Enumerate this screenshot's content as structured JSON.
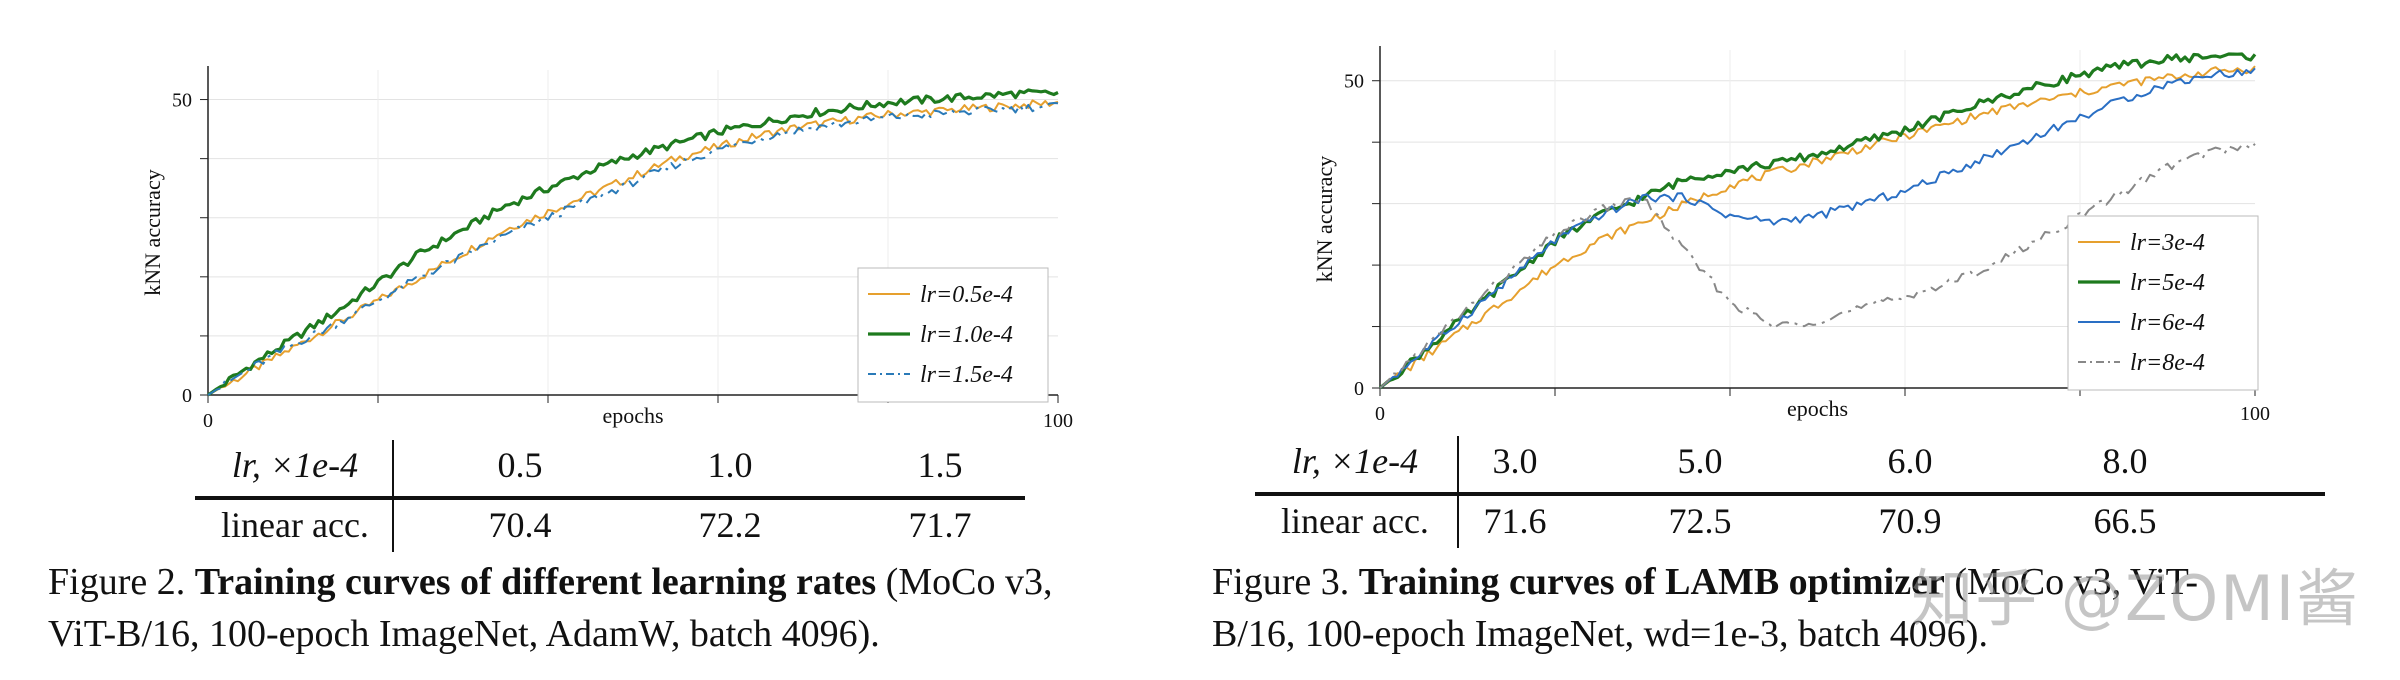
{
  "figures": [
    {
      "id": "fig2",
      "caption_prefix": "Figure 2.",
      "caption_bold": "Training curves of different learning rates",
      "caption_rest_line1": " (MoCo v3,",
      "caption_line2": "ViT-B/16, 100-epoch ImageNet, AdamW, batch 4096).",
      "table": {
        "header_label": "lr, ×1e-4",
        "header_values": [
          "0.5",
          "1.0",
          "1.5"
        ],
        "row_label": "linear acc.",
        "row_values": [
          "70.4",
          "72.2",
          "71.7"
        ]
      }
    },
    {
      "id": "fig3",
      "caption_prefix": "Figure 3.",
      "caption_bold": "Training curves of LAMB optimizer",
      "caption_rest_line1": " (MoCo v3, ViT-",
      "caption_line2": "B/16, 100-epoch ImageNet, wd=1e-3, batch 4096).",
      "table": {
        "header_label": "lr, ×1e-4",
        "header_values": [
          "3.0",
          "5.0",
          "6.0",
          "8.0"
        ],
        "row_label": "linear acc.",
        "row_values": [
          "71.6",
          "72.5",
          "70.9",
          "66.5"
        ]
      }
    }
  ],
  "watermark": "知乎 @ZOMI酱",
  "chart_data": [
    {
      "type": "line",
      "title": "",
      "xlabel": "epochs",
      "ylabel": "kNN accuracy",
      "xlim": [
        0,
        100
      ],
      "ylim": [
        0,
        55
      ],
      "x_ticks": [
        0,
        100
      ],
      "y_ticks": [
        0,
        50
      ],
      "legend_position": "bottom-right",
      "series": [
        {
          "name": "lr=0.5e-4",
          "color": "#e6a02e",
          "style": "solid",
          "x": [
            0,
            5,
            10,
            15,
            20,
            25,
            30,
            35,
            40,
            45,
            50,
            55,
            60,
            65,
            70,
            75,
            80,
            85,
            90,
            95,
            100
          ],
          "y": [
            0,
            4,
            8,
            12,
            16,
            20,
            24,
            28,
            31,
            34,
            37,
            40,
            42,
            44,
            45.5,
            46.5,
            47.5,
            48,
            48.5,
            49,
            49.5
          ]
        },
        {
          "name": "lr=1.0e-4",
          "color": "#1e7a1e",
          "style": "solid",
          "x": [
            0,
            5,
            10,
            15,
            20,
            25,
            30,
            35,
            40,
            45,
            50,
            55,
            60,
            65,
            70,
            75,
            80,
            85,
            90,
            95,
            100
          ],
          "y": [
            0,
            5,
            9.5,
            14,
            19,
            24,
            28,
            32,
            35,
            38,
            40.5,
            42.5,
            44.5,
            46,
            47.5,
            48.5,
            49.5,
            50,
            50.5,
            51,
            51
          ]
        },
        {
          "name": "lr=1.5e-4",
          "color": "#2a7ab8",
          "style": "dashdot",
          "x": [
            0,
            5,
            10,
            15,
            20,
            25,
            30,
            35,
            40,
            45,
            50,
            55,
            60,
            65,
            70,
            75,
            80,
            85,
            90,
            95,
            100
          ],
          "y": [
            0,
            4.5,
            8.5,
            12,
            16,
            20,
            23.5,
            27,
            30,
            33,
            36,
            39,
            41.5,
            43.5,
            45,
            46,
            47,
            47.5,
            48,
            48.5,
            49
          ]
        }
      ]
    },
    {
      "type": "line",
      "title": "",
      "xlabel": "epochs",
      "ylabel": "kNN accuracy",
      "xlim": [
        0,
        100
      ],
      "ylim": [
        0,
        55
      ],
      "x_ticks": [
        0,
        100
      ],
      "y_ticks": [
        0,
        50
      ],
      "legend_position": "right",
      "series": [
        {
          "name": "lr=3e-4",
          "color": "#e6a02e",
          "style": "solid",
          "x": [
            0,
            5,
            10,
            15,
            20,
            25,
            30,
            35,
            40,
            45,
            50,
            55,
            60,
            65,
            70,
            75,
            80,
            85,
            90,
            95,
            100
          ],
          "y": [
            0,
            5,
            10,
            15,
            20,
            24,
            27,
            30,
            33,
            35,
            37,
            39,
            41,
            43,
            45,
            46.5,
            48,
            49.5,
            50.5,
            51.5,
            52
          ]
        },
        {
          "name": "lr=5e-4",
          "color": "#1e7a1e",
          "style": "solid",
          "x": [
            0,
            5,
            10,
            15,
            20,
            25,
            30,
            35,
            40,
            45,
            50,
            55,
            60,
            65,
            70,
            75,
            80,
            85,
            90,
            95,
            100
          ],
          "y": [
            0,
            6,
            12,
            18,
            24,
            28,
            31,
            34,
            35.5,
            36.5,
            38,
            40,
            42,
            44.5,
            47,
            49,
            51,
            52.5,
            53.5,
            54,
            54
          ]
        },
        {
          "name": "lr=6e-4",
          "color": "#2a6fc4",
          "style": "solid",
          "x": [
            0,
            5,
            10,
            15,
            20,
            25,
            30,
            35,
            40,
            45,
            50,
            55,
            60,
            65,
            70,
            75,
            80,
            85,
            90,
            95,
            100
          ],
          "y": [
            0,
            6,
            12,
            18,
            24,
            28,
            31,
            31,
            28,
            27,
            28,
            30,
            32,
            35,
            38,
            41,
            44,
            47,
            49.5,
            51,
            51.5
          ]
        },
        {
          "name": "lr=8e-4",
          "color": "#888888",
          "style": "dashdot",
          "x": [
            0,
            5,
            10,
            15,
            20,
            25,
            30,
            35,
            40,
            45,
            50,
            55,
            60,
            65,
            70,
            75,
            80,
            85,
            90,
            95,
            100
          ],
          "y": [
            0,
            6.5,
            13,
            19,
            25,
            29,
            31,
            22,
            14,
            10,
            11,
            13,
            15,
            17,
            20,
            24,
            28,
            32,
            36,
            38.5,
            39.5
          ]
        }
      ]
    }
  ]
}
